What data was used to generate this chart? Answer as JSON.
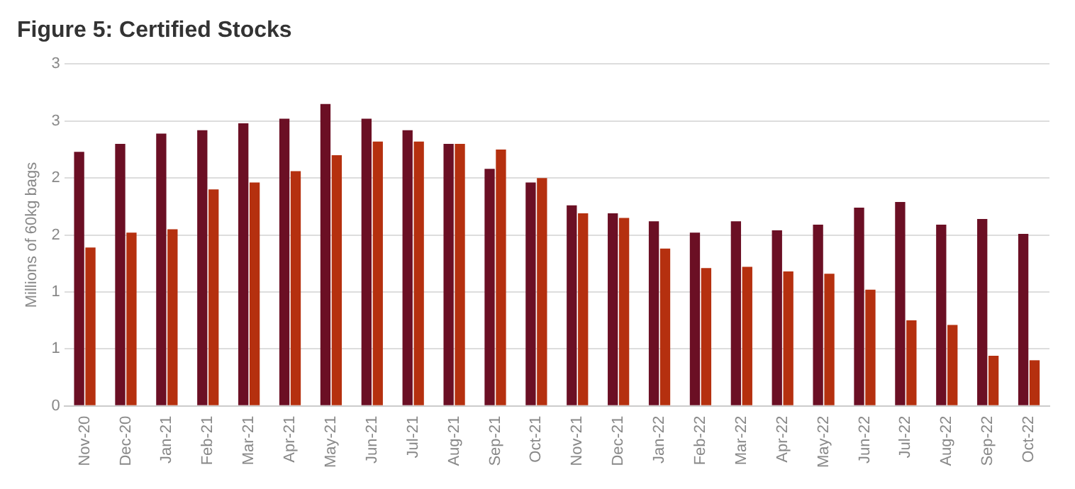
{
  "chart_data": {
    "type": "bar",
    "title": "Figure 5: Certified Stocks",
    "ylabel": "Millions of 60kg bags",
    "categories": [
      "Nov-20",
      "Dec-20",
      "Jan-21",
      "Feb-21",
      "Mar-21",
      "Apr-21",
      "May-21",
      "Jun-21",
      "Jul-21",
      "Aug-21",
      "Sep-21",
      "Oct-21",
      "Nov-21",
      "Dec-21",
      "Jan-22",
      "Feb-22",
      "Mar-22",
      "Apr-22",
      "May-22",
      "Jun-22",
      "Jul-22",
      "Aug-22",
      "Sep-22",
      "Oct-22"
    ],
    "series": [
      {
        "color": "#6b0f24",
        "values": [
          2.23,
          2.3,
          2.39,
          2.42,
          2.48,
          2.52,
          2.65,
          2.52,
          2.42,
          2.3,
          2.08,
          1.96,
          1.76,
          1.69,
          1.62,
          1.52,
          1.62,
          1.54,
          1.59,
          1.74,
          1.79,
          1.59,
          1.64,
          1.51
        ]
      },
      {
        "color": "#b5300f",
        "values": [
          1.39,
          1.52,
          1.55,
          1.9,
          1.96,
          2.06,
          2.2,
          2.32,
          2.32,
          2.3,
          2.25,
          2.0,
          1.69,
          1.65,
          1.38,
          1.21,
          1.22,
          1.18,
          1.16,
          1.02,
          0.75,
          0.71,
          0.44,
          0.4
        ]
      }
    ],
    "ylim": [
      0,
      3
    ],
    "yticks": [
      0,
      {
        "value": 0.5,
        "label": "1"
      },
      1,
      {
        "value": 1.5,
        "label": "2"
      },
      2,
      {
        "value": 2.5,
        "label": "3"
      },
      3
    ],
    "grid": "y"
  }
}
